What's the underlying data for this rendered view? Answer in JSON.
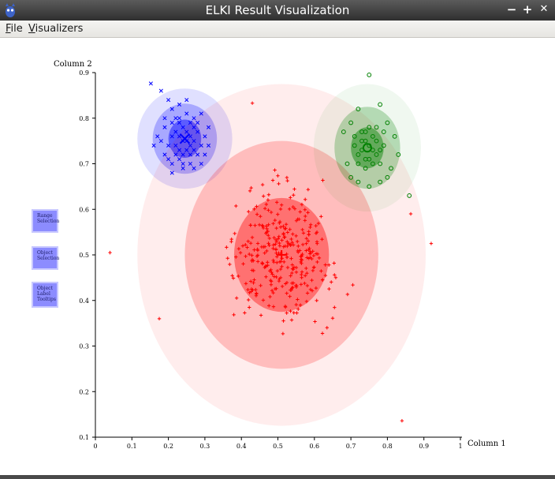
{
  "window": {
    "title": "ELKI Result Visualization",
    "controls": {
      "minimize": "−",
      "maximize": "+",
      "close": "✕"
    }
  },
  "menubar": {
    "file": {
      "mnemonic": "F",
      "rest": "ile"
    },
    "visualizers": {
      "mnemonic": "V",
      "rest": "isualizers"
    }
  },
  "tools": {
    "range_selection": [
      "Range",
      "Selection"
    ],
    "object_selection": [
      "Object",
      "Selection"
    ],
    "object_label_tooltips": [
      "Object",
      "Label",
      "Tooltips"
    ]
  },
  "colors": {
    "cluster_a": "#0000ff",
    "cluster_b": "#ff0000",
    "cluster_c": "#008000",
    "tool_button": "#8c8cff"
  },
  "chart_data": {
    "type": "scatter",
    "xlabel": "Column 1",
    "ylabel": "Column 2",
    "xlim": [
      0,
      1
    ],
    "ylim": [
      0.1,
      0.9
    ],
    "xticks": [
      "0",
      "0.1",
      "0.2",
      "0.3",
      "0.4",
      "0.5",
      "0.6",
      "0.7",
      "0.8",
      "0.9",
      "1"
    ],
    "yticks": [
      "0.1",
      "0.2",
      "0.3",
      "0.4",
      "0.5",
      "0.6",
      "0.7",
      "0.8",
      "0.9"
    ],
    "grid": false,
    "series": [
      {
        "marker": "x",
        "color": "#0000ff",
        "center": [
          0.245,
          0.755
        ],
        "spread": [
          0.04,
          0.035
        ],
        "ellipses": [
          {
            "rx": 0.13,
            "ry": 0.11,
            "opacity": 0.12
          },
          {
            "rx": 0.088,
            "ry": 0.077,
            "opacity": 0.25
          },
          {
            "rx": 0.045,
            "ry": 0.042,
            "opacity": 0.45
          }
        ],
        "points": [
          [
            0.152,
            0.876
          ],
          [
            0.18,
            0.86
          ],
          [
            0.2,
            0.84
          ],
          [
            0.21,
            0.82
          ],
          [
            0.23,
            0.83
          ],
          [
            0.25,
            0.84
          ],
          [
            0.27,
            0.8
          ],
          [
            0.29,
            0.81
          ],
          [
            0.31,
            0.78
          ],
          [
            0.19,
            0.78
          ],
          [
            0.17,
            0.76
          ],
          [
            0.16,
            0.74
          ],
          [
            0.19,
            0.72
          ],
          [
            0.21,
            0.7
          ],
          [
            0.23,
            0.71
          ],
          [
            0.24,
            0.69
          ],
          [
            0.26,
            0.7
          ],
          [
            0.28,
            0.72
          ],
          [
            0.29,
            0.74
          ],
          [
            0.3,
            0.76
          ],
          [
            0.22,
            0.77
          ],
          [
            0.23,
            0.79
          ],
          [
            0.25,
            0.77
          ],
          [
            0.26,
            0.76
          ],
          [
            0.24,
            0.75
          ],
          [
            0.22,
            0.74
          ],
          [
            0.25,
            0.73
          ],
          [
            0.27,
            0.75
          ],
          [
            0.21,
            0.76
          ],
          [
            0.24,
            0.78
          ],
          [
            0.26,
            0.79
          ],
          [
            0.28,
            0.77
          ],
          [
            0.2,
            0.74
          ],
          [
            0.27,
            0.73
          ],
          [
            0.23,
            0.73
          ],
          [
            0.22,
            0.8
          ],
          [
            0.25,
            0.81
          ],
          [
            0.28,
            0.79
          ],
          [
            0.19,
            0.8
          ],
          [
            0.3,
            0.72
          ],
          [
            0.21,
            0.68
          ],
          [
            0.24,
            0.72
          ],
          [
            0.25,
            0.75
          ],
          [
            0.23,
            0.76
          ],
          [
            0.26,
            0.74
          ],
          [
            0.27,
            0.78
          ],
          [
            0.2,
            0.71
          ],
          [
            0.29,
            0.7
          ],
          [
            0.22,
            0.72
          ],
          [
            0.26,
            0.72
          ],
          [
            0.24,
            0.7
          ],
          [
            0.18,
            0.75
          ],
          [
            0.31,
            0.74
          ],
          [
            0.27,
            0.69
          ],
          [
            0.23,
            0.8
          ],
          [
            0.21,
            0.79
          ]
        ]
      },
      {
        "marker": "+",
        "color": "#ff0000",
        "center": [
          0.51,
          0.5
        ],
        "spread": [
          0.11,
          0.105
        ],
        "ellipses": [
          {
            "rx": 0.395,
            "ry": 0.375,
            "opacity": 0.07
          },
          {
            "rx": 0.265,
            "ry": 0.25,
            "opacity": 0.2
          },
          {
            "rx": 0.13,
            "ry": 0.125,
            "opacity": 0.4
          }
        ],
        "points": [
          [
            0.04,
            0.505
          ],
          [
            0.43,
            0.833
          ],
          [
            0.864,
            0.59
          ],
          [
            0.92,
            0.525
          ],
          [
            0.175,
            0.36
          ],
          [
            0.84,
            0.136
          ]
        ]
      },
      {
        "marker": "o",
        "color": "#008000",
        "center": [
          0.745,
          0.735
        ],
        "spread": [
          0.04,
          0.04
        ],
        "ellipses": [
          {
            "rx": 0.147,
            "ry": 0.14,
            "opacity": 0.06
          },
          {
            "rx": 0.09,
            "ry": 0.09,
            "opacity": 0.25
          },
          {
            "rx": 0.045,
            "ry": 0.045,
            "opacity": 0.45
          }
        ],
        "points": [
          [
            0.75,
            0.895
          ],
          [
            0.86,
            0.63
          ],
          [
            0.78,
            0.83
          ],
          [
            0.72,
            0.82
          ],
          [
            0.8,
            0.79
          ],
          [
            0.7,
            0.79
          ],
          [
            0.68,
            0.77
          ],
          [
            0.82,
            0.76
          ],
          [
            0.83,
            0.72
          ],
          [
            0.81,
            0.69
          ],
          [
            0.69,
            0.7
          ],
          [
            0.7,
            0.67
          ],
          [
            0.72,
            0.66
          ],
          [
            0.75,
            0.65
          ],
          [
            0.78,
            0.66
          ],
          [
            0.8,
            0.67
          ],
          [
            0.74,
            0.75
          ],
          [
            0.76,
            0.76
          ],
          [
            0.73,
            0.73
          ],
          [
            0.77,
            0.72
          ],
          [
            0.75,
            0.74
          ],
          [
            0.71,
            0.74
          ],
          [
            0.79,
            0.74
          ],
          [
            0.74,
            0.71
          ],
          [
            0.76,
            0.7
          ],
          [
            0.72,
            0.7
          ],
          [
            0.78,
            0.7
          ],
          [
            0.75,
            0.78
          ],
          [
            0.73,
            0.77
          ],
          [
            0.77,
            0.78
          ],
          [
            0.71,
            0.76
          ],
          [
            0.79,
            0.77
          ],
          [
            0.74,
            0.69
          ],
          [
            0.76,
            0.73
          ],
          [
            0.73,
            0.75
          ],
          [
            0.77,
            0.75
          ],
          [
            0.72,
            0.72
          ],
          [
            0.78,
            0.73
          ],
          [
            0.75,
            0.71
          ],
          [
            0.74,
            0.77
          ]
        ]
      }
    ]
  }
}
